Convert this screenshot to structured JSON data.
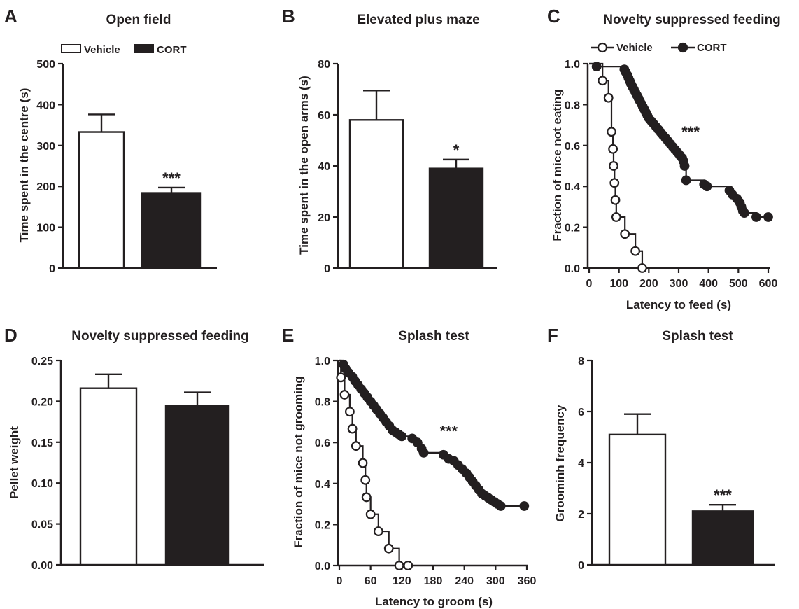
{
  "legend": {
    "vehicle": "Vehicle",
    "cort": "CORT"
  },
  "chart_data": [
    {
      "id": "A",
      "type": "bar",
      "panel_label": "A",
      "title": "Open field",
      "xlabel": "",
      "ylabel": "Time spent in the centre (s)",
      "ylim": [
        0,
        500
      ],
      "yticks": [
        0,
        100,
        200,
        300,
        400,
        500
      ],
      "categories": [
        "Vehicle",
        "CORT"
      ],
      "values": [
        333,
        184
      ],
      "errors": [
        43,
        13
      ],
      "annotations": [
        {
          "bar": 1,
          "text": "***"
        }
      ],
      "legend": "top"
    },
    {
      "id": "B",
      "type": "bar",
      "panel_label": "B",
      "title": "Elevated plus maze",
      "xlabel": "",
      "ylabel": "Time spent in the open arms (s)",
      "ylim": [
        0,
        80
      ],
      "yticks": [
        0,
        20,
        40,
        60,
        80
      ],
      "categories": [
        "Vehicle",
        "CORT"
      ],
      "values": [
        58,
        39
      ],
      "errors": [
        11.5,
        3.5
      ],
      "annotations": [
        {
          "bar": 1,
          "text": "*"
        }
      ]
    },
    {
      "id": "C",
      "type": "line",
      "panel_label": "C",
      "title": "Novelty suppressed feeding",
      "xlabel": "Latency to feed (s)",
      "ylabel": "Fraction of mice not eating",
      "xlim": [
        0,
        600
      ],
      "xticks": [
        0,
        100,
        200,
        300,
        400,
        500,
        600
      ],
      "ylim": [
        0,
        1
      ],
      "yticks": [
        0.0,
        0.2,
        0.4,
        0.6,
        0.8,
        1.0
      ],
      "legend": "top",
      "series": [
        {
          "name": "Vehicle",
          "step": "post",
          "marker": "open-circle",
          "x_end": 178,
          "x": [
            0,
            45,
            65,
            75,
            80,
            82,
            85,
            88,
            91,
            120,
            155,
            178
          ],
          "y": [
            1.0,
            0.917,
            0.833,
            0.667,
            0.583,
            0.5,
            0.417,
            0.333,
            0.25,
            0.167,
            0.083,
            0.0
          ]
        },
        {
          "name": "CORT",
          "step": "post",
          "marker": "filled-circle",
          "x_end": 600,
          "x": [
            0,
            25,
            118,
            123,
            128,
            132,
            136,
            140,
            145,
            150,
            155,
            160,
            165,
            170,
            175,
            180,
            185,
            190,
            195,
            200,
            208,
            216,
            224,
            232,
            240,
            248,
            256,
            264,
            272,
            280,
            288,
            296,
            304,
            312,
            316,
            320,
            325,
            385,
            395,
            470,
            480,
            495,
            505,
            510,
            515,
            520,
            560,
            600
          ],
          "y": [
            1.0,
            0.986,
            0.972,
            0.958,
            0.944,
            0.93,
            0.916,
            0.902,
            0.888,
            0.874,
            0.86,
            0.846,
            0.832,
            0.818,
            0.804,
            0.79,
            0.776,
            0.762,
            0.748,
            0.734,
            0.72,
            0.706,
            0.692,
            0.678,
            0.664,
            0.65,
            0.636,
            0.622,
            0.608,
            0.594,
            0.58,
            0.566,
            0.552,
            0.538,
            0.524,
            0.5,
            0.43,
            0.41,
            0.4,
            0.38,
            0.36,
            0.34,
            0.32,
            0.3,
            0.28,
            0.27,
            0.25,
            0.25
          ]
        }
      ],
      "annotations": [
        {
          "x": 340,
          "y": 0.64,
          "text": "***"
        }
      ]
    },
    {
      "id": "D",
      "type": "bar",
      "panel_label": "D",
      "title": "Novelty suppressed feeding",
      "xlabel": "",
      "ylabel": "Pellet weight",
      "ylim": [
        0,
        0.25
      ],
      "yticks": [
        0.0,
        0.05,
        0.1,
        0.15,
        0.2,
        0.25
      ],
      "tick_decimals": 2,
      "categories": [
        "Vehicle",
        "CORT"
      ],
      "values": [
        0.216,
        0.195
      ],
      "errors": [
        0.017,
        0.016
      ],
      "annotations": []
    },
    {
      "id": "E",
      "type": "line",
      "panel_label": "E",
      "title": "Splash test",
      "xlabel": "Latency to groom (s)",
      "ylabel": "Fraction of mice not grooming",
      "xlim": [
        0,
        360
      ],
      "xticks": [
        0,
        60,
        120,
        180,
        240,
        300,
        360
      ],
      "ylim": [
        0,
        1
      ],
      "yticks": [
        0.0,
        0.2,
        0.4,
        0.6,
        0.8,
        1.0
      ],
      "series": [
        {
          "name": "Vehicle",
          "step": "post",
          "marker": "open-circle",
          "x_end": 132,
          "x": [
            0,
            3,
            10,
            20,
            25,
            32,
            45,
            50,
            52,
            60,
            75,
            95,
            115,
            132
          ],
          "y": [
            1.0,
            0.917,
            0.833,
            0.75,
            0.667,
            0.583,
            0.5,
            0.417,
            0.333,
            0.25,
            0.167,
            0.083,
            0.0,
            0.0
          ]
        },
        {
          "name": "CORT",
          "step": "post",
          "marker": "filled-circle",
          "x_end": 355,
          "x": [
            0,
            8,
            12,
            18,
            25,
            30,
            36,
            42,
            48,
            54,
            60,
            66,
            72,
            78,
            84,
            90,
            96,
            102,
            108,
            114,
            120,
            140,
            150,
            158,
            162,
            200,
            210,
            220,
            228,
            236,
            244,
            250,
            256,
            262,
            268,
            274,
            280,
            286,
            292,
            298,
            304,
            310,
            355
          ],
          "y": [
            1.0,
            0.98,
            0.96,
            0.94,
            0.92,
            0.9,
            0.88,
            0.86,
            0.84,
            0.82,
            0.8,
            0.78,
            0.76,
            0.74,
            0.72,
            0.7,
            0.68,
            0.66,
            0.65,
            0.64,
            0.63,
            0.62,
            0.6,
            0.57,
            0.55,
            0.54,
            0.52,
            0.51,
            0.49,
            0.47,
            0.45,
            0.43,
            0.41,
            0.39,
            0.37,
            0.35,
            0.34,
            0.33,
            0.32,
            0.31,
            0.3,
            0.29,
            0.29
          ]
        }
      ],
      "annotations": [
        {
          "x": 210,
          "y": 0.63,
          "text": "***"
        }
      ]
    },
    {
      "id": "F",
      "type": "bar",
      "panel_label": "F",
      "title": "Splash test",
      "xlabel": "",
      "ylabel": "Groominh frequency",
      "ylim": [
        0,
        8
      ],
      "yticks": [
        0,
        2,
        4,
        6,
        8
      ],
      "categories": [
        "Vehicle",
        "CORT"
      ],
      "values": [
        5.1,
        2.1
      ],
      "errors": [
        0.8,
        0.25
      ],
      "annotations": [
        {
          "bar": 1,
          "text": "***"
        }
      ]
    }
  ]
}
